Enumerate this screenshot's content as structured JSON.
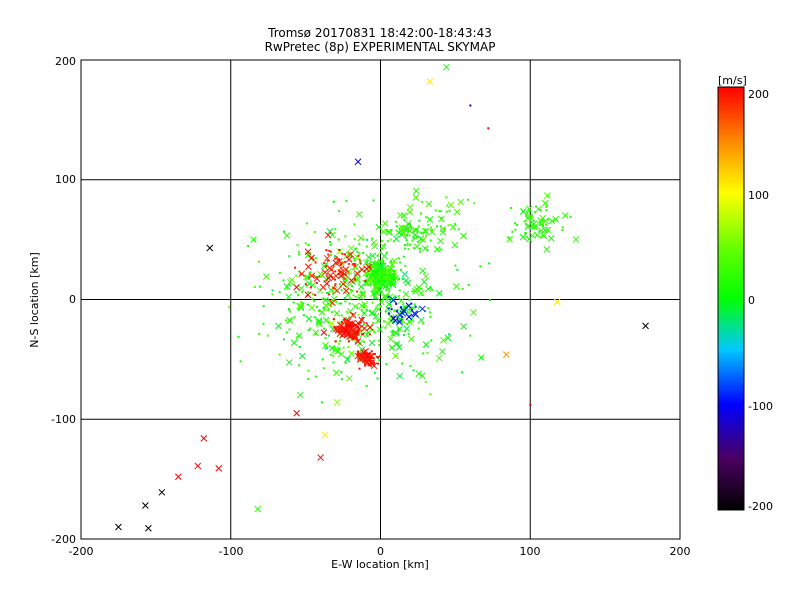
{
  "chart_data": {
    "type": "scatter",
    "title": "Tromsø 20170831 18:42:00-18:43:43",
    "subtitle": "RwPretec (8p) EXPERIMENTAL SKYMAP",
    "xlabel": "E-W location [km]",
    "ylabel": "N-S location [km]",
    "xlim": [
      -200,
      200
    ],
    "ylim": [
      -200,
      200
    ],
    "x_ticks": [
      "-200",
      "-100",
      "0",
      "100",
      "200"
    ],
    "y_ticks": [
      "-200",
      "-100",
      "0",
      "100",
      "200"
    ],
    "grid": true,
    "colorbar": {
      "label": "[m/s]",
      "min": -200,
      "max": 200,
      "ticks": [
        "200",
        "100",
        "0",
        "-100",
        "-200"
      ],
      "stops": [
        "#000000",
        "#0000ff",
        "#00ffcc",
        "#00ff00",
        "#ffff00",
        "#ff0000"
      ]
    },
    "notable_points": [
      {
        "x": 177,
        "y": -22,
        "v": -200,
        "marker": "x"
      },
      {
        "x": -175,
        "y": -190,
        "v": -200,
        "marker": "x"
      },
      {
        "x": -157,
        "y": -172,
        "v": -200,
        "marker": "x"
      },
      {
        "x": -155,
        "y": -191,
        "v": -200,
        "marker": "x"
      },
      {
        "x": -146,
        "y": -161,
        "v": -200,
        "marker": "x"
      },
      {
        "x": -114,
        "y": 43,
        "v": -200,
        "marker": "x"
      },
      {
        "x": -118,
        "y": -116,
        "v": 200,
        "marker": "x"
      },
      {
        "x": -122,
        "y": -139,
        "v": 200,
        "marker": "x"
      },
      {
        "x": -108,
        "y": -141,
        "v": 200,
        "marker": "x"
      },
      {
        "x": -135,
        "y": -148,
        "v": 200,
        "marker": "x"
      },
      {
        "x": -56,
        "y": -95,
        "v": 200,
        "marker": "x"
      },
      {
        "x": -40,
        "y": -132,
        "v": 200,
        "marker": "x"
      },
      {
        "x": 33,
        "y": 182,
        "v": 110,
        "marker": "x"
      },
      {
        "x": 44,
        "y": 194,
        "v": 10,
        "marker": "x"
      },
      {
        "x": 60,
        "y": 162,
        "v": -110,
        "marker": "."
      },
      {
        "x": 72,
        "y": 143,
        "v": 200,
        "marker": "."
      },
      {
        "x": -15,
        "y": 115,
        "v": -110,
        "marker": "x"
      },
      {
        "x": 118,
        "y": -2,
        "v": 110,
        "marker": "x"
      },
      {
        "x": 84,
        "y": -46,
        "v": 140,
        "marker": "x"
      },
      {
        "x": 100,
        "y": -88,
        "v": 200,
        "marker": "."
      },
      {
        "x": -82,
        "y": -175,
        "v": 20,
        "marker": "x"
      },
      {
        "x": -37,
        "y": -113,
        "v": 110,
        "marker": "x"
      }
    ],
    "clusters": [
      {
        "cx": 0,
        "cy": 20,
        "sx": 8,
        "sy": 10,
        "n": 220,
        "v": 20,
        "vs": 25
      },
      {
        "cx": -10,
        "cy": 0,
        "sx": 55,
        "sy": 55,
        "n": 520,
        "v": 15,
        "vs": 30
      },
      {
        "cx": -20,
        "cy": -25,
        "sx": 10,
        "sy": 8,
        "n": 110,
        "v": 195,
        "vs": 10
      },
      {
        "cx": -8,
        "cy": -50,
        "sx": 6,
        "sy": 6,
        "n": 60,
        "v": 195,
        "vs": 8
      },
      {
        "cx": -30,
        "cy": 25,
        "sx": 18,
        "sy": 18,
        "n": 90,
        "v": 190,
        "vs": 15
      },
      {
        "cx": 20,
        "cy": 55,
        "sx": 15,
        "sy": 10,
        "n": 70,
        "v": 15,
        "vs": 15
      },
      {
        "cx": 105,
        "cy": 65,
        "sx": 15,
        "sy": 15,
        "n": 70,
        "v": 20,
        "vs": 15
      },
      {
        "cx": 15,
        "cy": -10,
        "sx": 10,
        "sy": 10,
        "n": 25,
        "v": -100,
        "vs": 20
      },
      {
        "cx": 40,
        "cy": 70,
        "sx": 20,
        "sy": 15,
        "n": 40,
        "v": 25,
        "vs": 20
      }
    ]
  }
}
